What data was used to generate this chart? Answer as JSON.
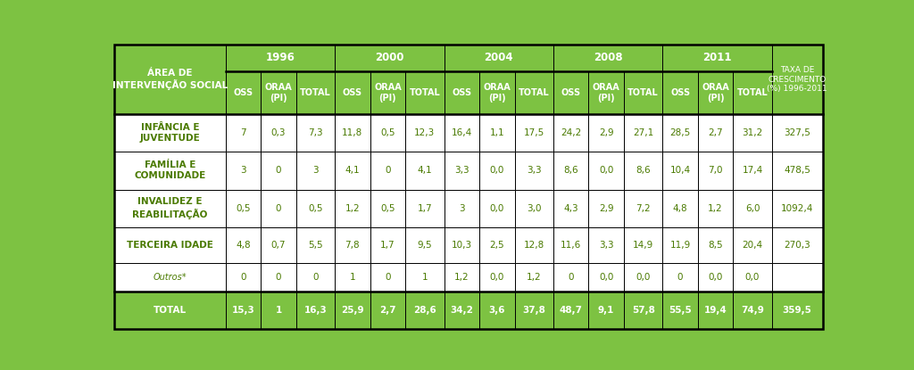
{
  "green_bg": "#7DC242",
  "white_bg": "#FFFFFF",
  "dark_text": "#4A7A00",
  "header_years": [
    "1996",
    "2000",
    "2004",
    "2008",
    "2011"
  ],
  "rows": [
    {
      "label": "INFÂNCIA E\nJUVENTUDE",
      "label_bold": true,
      "label_italic": false,
      "values_str": [
        "7",
        "0,3",
        "7,3",
        "11,8",
        "0,5",
        "12,3",
        "16,4",
        "1,1",
        "17,5",
        "24,2",
        "2,9",
        "27,1",
        "28,5",
        "2,7",
        "31,2"
      ],
      "taxa": "327,5",
      "bg": "#FFFFFF",
      "bold": false
    },
    {
      "label": "FAMÍLIA E\nCOMUNIDADE",
      "label_bold": true,
      "label_italic": false,
      "values_str": [
        "3",
        "0",
        "3",
        "4,1",
        "0",
        "4,1",
        "3,3",
        "0,0",
        "3,3",
        "8,6",
        "0,0",
        "8,6",
        "10,4",
        "7,0",
        "17,4"
      ],
      "taxa": "478,5",
      "bg": "#FFFFFF",
      "bold": false
    },
    {
      "label": "INVALIDEZ E\nREABILITAÇÃO",
      "label_bold": true,
      "label_italic": false,
      "values_str": [
        "0,5",
        "0",
        "0,5",
        "1,2",
        "0,5",
        "1,7",
        "3",
        "0,0",
        "3,0",
        "4,3",
        "2,9",
        "7,2",
        "4,8",
        "1,2",
        "6,0"
      ],
      "taxa": "1092,4",
      "bg": "#FFFFFF",
      "bold": false
    },
    {
      "label": "TERCEIRA IDADE",
      "label_bold": true,
      "label_italic": false,
      "values_str": [
        "4,8",
        "0,7",
        "5,5",
        "7,8",
        "1,7",
        "9,5",
        "10,3",
        "2,5",
        "12,8",
        "11,6",
        "3,3",
        "14,9",
        "11,9",
        "8,5",
        "20,4"
      ],
      "taxa": "270,3",
      "bg": "#FFFFFF",
      "bold": false
    },
    {
      "label": "Outros*",
      "label_bold": false,
      "label_italic": true,
      "values_str": [
        "0",
        "0",
        "0",
        "1",
        "0",
        "1",
        "1,2",
        "0,0",
        "1,2",
        "0",
        "0,0",
        "0,0",
        "0",
        "0,0",
        "0,0"
      ],
      "taxa": "",
      "bg": "#FFFFFF",
      "bold": false
    },
    {
      "label": "TOTAL",
      "label_bold": true,
      "label_italic": false,
      "values_str": [
        "15,3",
        "1",
        "16,3",
        "25,9",
        "2,7",
        "28,6",
        "34,2",
        "3,6",
        "37,8",
        "48,7",
        "9,1",
        "57,8",
        "55,5",
        "19,4",
        "74,9"
      ],
      "taxa": "359,5",
      "bg": "#7DC242",
      "bold": true
    }
  ]
}
